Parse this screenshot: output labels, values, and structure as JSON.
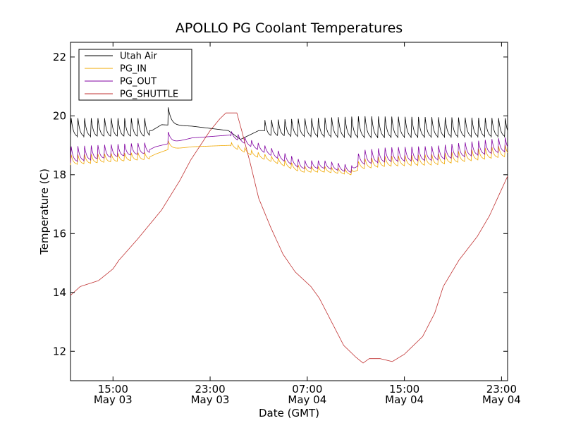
{
  "chart_data": {
    "type": "line",
    "title": "APOLLO PG Coolant Temperatures",
    "xlabel": "Date (GMT)",
    "ylabel": "Temperature (C)",
    "xlim_hours": [
      0,
      36
    ],
    "ylim": [
      11,
      22.5
    ],
    "grid": false,
    "legend_position": "top-left",
    "yticks": [
      {
        "value": 12,
        "label": "12"
      },
      {
        "value": 14,
        "label": "14"
      },
      {
        "value": 16,
        "label": "16"
      },
      {
        "value": 18,
        "label": "18"
      },
      {
        "value": 20,
        "label": "20"
      },
      {
        "value": 22,
        "label": "22"
      }
    ],
    "xticks": [
      {
        "hour": 3.5,
        "time": "15:00",
        "date": "May 03"
      },
      {
        "hour": 11.5,
        "time": "23:00",
        "date": "May 03"
      },
      {
        "hour": 19.5,
        "time": "07:00",
        "date": "May 04"
      },
      {
        "hour": 27.5,
        "time": "15:00",
        "date": "May 04"
      },
      {
        "hour": 35.5,
        "time": "23:00",
        "date": "May 04"
      }
    ],
    "series": [
      {
        "name": "Utah Air",
        "color": "#000000",
        "cycling": [
          [
            0,
            6.5
          ],
          [
            16,
            36
          ]
        ],
        "baseline": [
          [
            0,
            19.5
          ],
          [
            6.7,
            19.5
          ],
          [
            7.5,
            19.7
          ],
          [
            10,
            19.65
          ],
          [
            13,
            19.5
          ],
          [
            14,
            19.2
          ],
          [
            15.5,
            19.5
          ],
          [
            36,
            19.5
          ]
        ],
        "amplitude": [
          [
            0,
            0.65
          ],
          [
            15,
            0.65
          ],
          [
            16,
            0.55
          ],
          [
            24,
            0.75
          ],
          [
            36,
            0.65
          ]
        ],
        "spikes": [
          [
            8.05,
            0.6
          ]
        ]
      },
      {
        "name": "PG_IN",
        "color": "#f0a800",
        "cycling": [
          [
            0,
            6.5
          ],
          [
            13.2,
            36
          ]
        ],
        "baseline": [
          [
            0,
            18.45
          ],
          [
            6.5,
            18.6
          ],
          [
            7,
            18.7
          ],
          [
            8,
            18.85
          ],
          [
            10,
            18.95
          ],
          [
            13.2,
            19.0
          ],
          [
            15,
            18.7
          ],
          [
            17,
            18.45
          ],
          [
            19,
            18.15
          ],
          [
            21,
            18.15
          ],
          [
            23.2,
            18.05
          ],
          [
            23.8,
            18.3
          ],
          [
            26,
            18.4
          ],
          [
            30,
            18.45
          ],
          [
            36,
            18.75
          ]
        ],
        "amplitude": [
          [
            0,
            0.35
          ],
          [
            13.2,
            0.15
          ],
          [
            18,
            0.22
          ],
          [
            23.2,
            0.18
          ],
          [
            24,
            0.35
          ],
          [
            36,
            0.4
          ]
        ],
        "spikes": [
          [
            8.05,
            0.3
          ]
        ]
      },
      {
        "name": "PG_OUT",
        "color": "#8000a0",
        "cycling": [
          [
            0,
            6.5
          ],
          [
            13.2,
            36
          ]
        ],
        "baseline": [
          [
            0,
            18.6
          ],
          [
            6.5,
            18.85
          ],
          [
            7,
            18.95
          ],
          [
            8,
            19.05
          ],
          [
            10,
            19.25
          ],
          [
            13.2,
            19.35
          ],
          [
            15,
            19.0
          ],
          [
            17,
            18.65
          ],
          [
            19,
            18.3
          ],
          [
            21,
            18.3
          ],
          [
            23.2,
            18.15
          ],
          [
            23.8,
            18.5
          ],
          [
            26,
            18.6
          ],
          [
            30,
            18.65
          ],
          [
            36,
            18.95
          ]
        ],
        "amplitude": [
          [
            0,
            0.55
          ],
          [
            13.2,
            0.2
          ],
          [
            18,
            0.3
          ],
          [
            23.2,
            0.25
          ],
          [
            24,
            0.5
          ],
          [
            36,
            0.5
          ]
        ],
        "spikes": [
          [
            8.05,
            0.4
          ]
        ]
      },
      {
        "name": "PG_SHUTTLE",
        "color": "#c03030",
        "cycling": [],
        "baseline": [
          [
            0,
            13.9
          ],
          [
            0.8,
            14.2
          ],
          [
            2.3,
            14.4
          ],
          [
            3.5,
            14.8
          ],
          [
            4,
            15.1
          ],
          [
            5.5,
            15.8
          ],
          [
            7.5,
            16.8
          ],
          [
            9,
            17.8
          ],
          [
            9.9,
            18.5
          ],
          [
            11.5,
            19.5
          ],
          [
            12.3,
            19.9
          ],
          [
            12.8,
            20.1
          ],
          [
            13.7,
            20.1
          ],
          [
            14.1,
            19.5
          ],
          [
            14.8,
            18.4
          ],
          [
            15.5,
            17.2
          ],
          [
            16.5,
            16.2
          ],
          [
            17.5,
            15.3
          ],
          [
            18.5,
            14.7
          ],
          [
            19.8,
            14.2
          ],
          [
            20.5,
            13.8
          ],
          [
            21.5,
            13.0
          ],
          [
            22.5,
            12.2
          ],
          [
            23.5,
            11.8
          ],
          [
            24.1,
            11.6
          ],
          [
            24.6,
            11.75
          ],
          [
            25.5,
            11.75
          ],
          [
            26.5,
            11.65
          ],
          [
            27.5,
            11.9
          ],
          [
            29,
            12.5
          ],
          [
            30,
            13.3
          ],
          [
            30.7,
            14.2
          ],
          [
            32,
            15.1
          ],
          [
            33.5,
            15.9
          ],
          [
            34.5,
            16.6
          ],
          [
            36,
            17.95
          ]
        ],
        "amplitude": [
          [
            0,
            0
          ]
        ],
        "spikes": []
      }
    ]
  }
}
